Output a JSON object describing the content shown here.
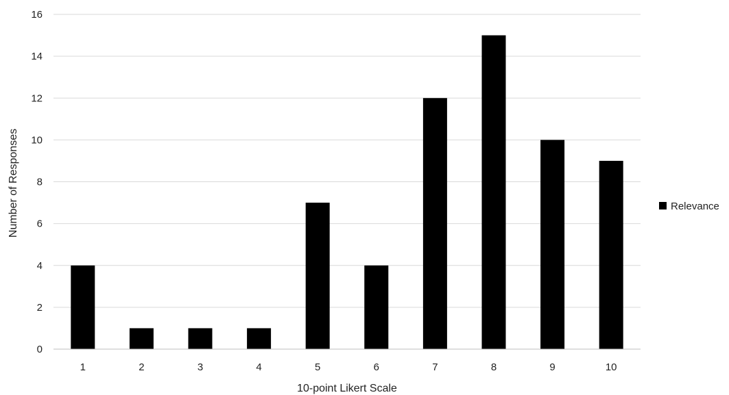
{
  "chart_data": {
    "type": "bar",
    "title": "",
    "xlabel": "10-point Likert Scale",
    "ylabel": "Number of Responses",
    "categories": [
      "1",
      "2",
      "3",
      "4",
      "5",
      "6",
      "7",
      "8",
      "9",
      "10"
    ],
    "series": [
      {
        "name": "Relevance",
        "values": [
          4,
          1,
          1,
          1,
          7,
          4,
          12,
          15,
          10,
          9
        ],
        "color": "#000000"
      }
    ],
    "ylim": [
      0,
      16
    ],
    "yticks": [
      "0",
      "2",
      "4",
      "6",
      "8",
      "10",
      "12",
      "14",
      "16"
    ],
    "grid": true,
    "legend_position": "right"
  }
}
